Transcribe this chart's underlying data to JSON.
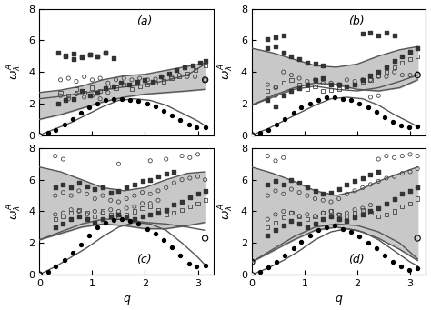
{
  "panels": [
    "(a)",
    "(b)",
    "(c)",
    "(d)"
  ],
  "xlabel": "q",
  "xlim": [
    0,
    3.3
  ],
  "ylim": [
    0,
    8
  ],
  "yticks": [
    0,
    2,
    4,
    6,
    8
  ],
  "xticks": [
    0,
    1,
    2,
    3
  ],
  "curves": {
    "a": {
      "band_lower": [
        [
          0,
          1.0
        ],
        [
          0.4,
          1.3
        ],
        [
          0.8,
          1.7
        ],
        [
          1.2,
          2.1
        ],
        [
          1.6,
          2.4
        ],
        [
          2.0,
          2.6
        ],
        [
          2.4,
          2.7
        ],
        [
          2.8,
          2.8
        ],
        [
          3.14,
          2.9
        ]
      ],
      "band_upper": [
        [
          0,
          2.7
        ],
        [
          0.4,
          2.85
        ],
        [
          0.8,
          3.1
        ],
        [
          1.2,
          3.5
        ],
        [
          1.6,
          3.75
        ],
        [
          2.0,
          3.85
        ],
        [
          2.4,
          4.1
        ],
        [
          2.8,
          4.35
        ],
        [
          3.14,
          4.55
        ]
      ],
      "line_low": [
        [
          0,
          0
        ],
        [
          0.3,
          0.4
        ],
        [
          0.6,
          0.8
        ],
        [
          0.9,
          1.3
        ],
        [
          1.2,
          1.8
        ],
        [
          1.5,
          2.2
        ],
        [
          1.8,
          2.3
        ],
        [
          2.1,
          2.2
        ],
        [
          2.4,
          1.9
        ],
        [
          2.7,
          1.4
        ],
        [
          3.0,
          0.9
        ],
        [
          3.14,
          0.6
        ]
      ],
      "line_high": [
        [
          0,
          2.3
        ],
        [
          0.4,
          2.45
        ],
        [
          0.8,
          2.65
        ],
        [
          1.2,
          2.85
        ],
        [
          1.6,
          3.05
        ],
        [
          2.0,
          3.2
        ],
        [
          2.4,
          3.45
        ],
        [
          2.8,
          3.8
        ],
        [
          3.14,
          4.5
        ]
      ]
    },
    "b": {
      "band_lower": [
        [
          0,
          1.9
        ],
        [
          0.4,
          2.5
        ],
        [
          0.8,
          3.0
        ],
        [
          1.2,
          3.3
        ],
        [
          1.6,
          3.2
        ],
        [
          2.0,
          2.9
        ],
        [
          2.4,
          2.8
        ],
        [
          2.8,
          3.0
        ],
        [
          3.14,
          3.5
        ]
      ],
      "band_upper": [
        [
          0,
          5.5
        ],
        [
          0.4,
          5.2
        ],
        [
          0.8,
          4.8
        ],
        [
          1.2,
          4.4
        ],
        [
          1.6,
          4.3
        ],
        [
          2.0,
          4.5
        ],
        [
          2.4,
          5.0
        ],
        [
          2.8,
          5.4
        ],
        [
          3.14,
          5.6
        ]
      ],
      "line_low": [
        [
          0,
          0
        ],
        [
          0.3,
          0.4
        ],
        [
          0.6,
          0.9
        ],
        [
          0.9,
          1.4
        ],
        [
          1.2,
          1.9
        ],
        [
          1.5,
          2.3
        ],
        [
          1.8,
          2.4
        ],
        [
          2.1,
          2.3
        ],
        [
          2.4,
          1.9
        ],
        [
          2.7,
          1.3
        ],
        [
          3.0,
          0.8
        ],
        [
          3.14,
          0.55
        ]
      ],
      "line_high": [
        [
          0,
          1.9
        ],
        [
          0.4,
          2.4
        ],
        [
          0.8,
          2.9
        ],
        [
          1.2,
          3.1
        ],
        [
          1.6,
          2.9
        ],
        [
          2.0,
          2.8
        ],
        [
          2.4,
          3.0
        ],
        [
          2.8,
          3.4
        ],
        [
          3.14,
          3.8
        ]
      ]
    },
    "c": {
      "band_lower": [
        [
          0,
          2.2
        ],
        [
          0.4,
          2.6
        ],
        [
          0.8,
          3.0
        ],
        [
          1.2,
          3.2
        ],
        [
          1.6,
          3.1
        ],
        [
          2.0,
          2.9
        ],
        [
          2.4,
          2.9
        ],
        [
          2.8,
          3.1
        ],
        [
          3.14,
          3.3
        ]
      ],
      "band_upper": [
        [
          0,
          6.8
        ],
        [
          0.4,
          6.5
        ],
        [
          0.8,
          6.0
        ],
        [
          1.2,
          5.5
        ],
        [
          1.6,
          5.3
        ],
        [
          2.0,
          5.5
        ],
        [
          2.4,
          6.0
        ],
        [
          2.8,
          6.4
        ],
        [
          3.14,
          6.5
        ]
      ],
      "line_low": [
        [
          0,
          0
        ],
        [
          0.3,
          0.5
        ],
        [
          0.6,
          1.1
        ],
        [
          0.9,
          1.7
        ],
        [
          1.2,
          2.4
        ],
        [
          1.5,
          3.0
        ],
        [
          1.8,
          3.3
        ],
        [
          2.1,
          3.2
        ],
        [
          2.4,
          2.8
        ],
        [
          2.7,
          2.0
        ],
        [
          3.0,
          1.1
        ],
        [
          3.14,
          0.6
        ]
      ],
      "line_high": [
        [
          0,
          2.2
        ],
        [
          0.4,
          2.7
        ],
        [
          0.8,
          3.2
        ],
        [
          1.2,
          3.5
        ],
        [
          1.6,
          3.5
        ],
        [
          2.0,
          3.3
        ],
        [
          2.4,
          3.2
        ],
        [
          2.8,
          3.0
        ],
        [
          3.14,
          2.8
        ]
      ]
    },
    "d": {
      "band_lower": [
        [
          0,
          0.8
        ],
        [
          0.4,
          1.5
        ],
        [
          0.8,
          2.2
        ],
        [
          1.2,
          2.8
        ],
        [
          1.6,
          3.0
        ],
        [
          2.0,
          2.8
        ],
        [
          2.4,
          2.3
        ],
        [
          2.8,
          1.6
        ],
        [
          3.14,
          0.9
        ]
      ],
      "band_upper": [
        [
          0,
          6.8
        ],
        [
          0.4,
          6.4
        ],
        [
          0.8,
          5.9
        ],
        [
          1.2,
          5.3
        ],
        [
          1.6,
          5.0
        ],
        [
          2.0,
          5.3
        ],
        [
          2.4,
          5.9
        ],
        [
          2.8,
          6.4
        ],
        [
          3.14,
          6.8
        ]
      ],
      "line_low": [
        [
          0,
          0
        ],
        [
          0.3,
          0.4
        ],
        [
          0.6,
          0.9
        ],
        [
          0.9,
          1.5
        ],
        [
          1.2,
          2.2
        ],
        [
          1.5,
          2.7
        ],
        [
          1.8,
          2.9
        ],
        [
          2.1,
          2.7
        ],
        [
          2.4,
          2.2
        ],
        [
          2.7,
          1.5
        ],
        [
          3.0,
          0.8
        ],
        [
          3.14,
          0.55
        ]
      ],
      "line_high": [
        [
          0,
          0.8
        ],
        [
          0.4,
          1.6
        ],
        [
          0.8,
          2.4
        ],
        [
          1.2,
          3.0
        ],
        [
          1.6,
          3.2
        ],
        [
          2.0,
          3.1
        ],
        [
          2.4,
          2.7
        ],
        [
          2.8,
          2.0
        ],
        [
          3.14,
          1.0
        ]
      ]
    }
  },
  "shading_color": "#c8c8c8",
  "line_color": "#555555",
  "background_color": "#ffffff",
  "label_fontsize": 9,
  "tick_fontsize": 8,
  "panel_label_fontsize": 9
}
